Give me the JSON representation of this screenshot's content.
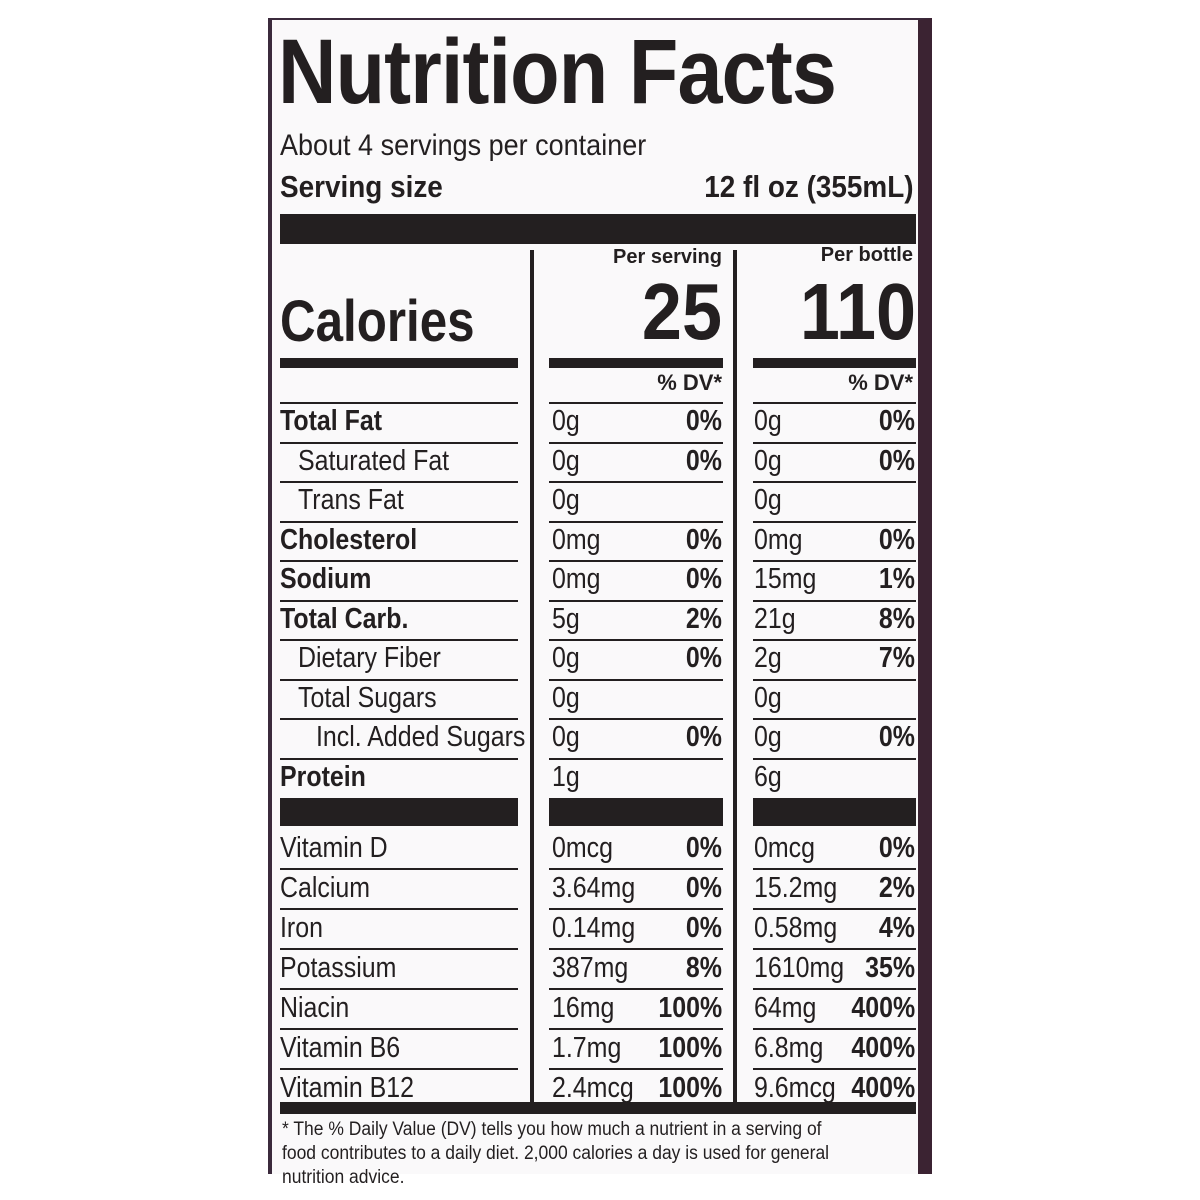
{
  "title": "Nutrition Facts",
  "servings_per_container": "About 4 servings per container",
  "serving_size_label": "Serving size",
  "serving_size_value": "12 fl oz (355mL)",
  "columns": [
    {
      "header": "Per serving",
      "calories": "25",
      "dv_header": "% DV*"
    },
    {
      "header": "Per bottle",
      "calories": "110",
      "dv_header": "% DV*"
    }
  ],
  "calories_label": "Calories",
  "nutrients": [
    {
      "label": "Total Fat",
      "bold": true,
      "indent": 0,
      "serving": "0g",
      "serving_dv": "0%",
      "bottle": "0g",
      "bottle_dv": "0%"
    },
    {
      "label": "Saturated Fat",
      "bold": false,
      "indent": 1,
      "serving": "0g",
      "serving_dv": "0%",
      "bottle": "0g",
      "bottle_dv": "0%"
    },
    {
      "label": "Trans Fat",
      "bold": false,
      "indent": 1,
      "serving": "0g",
      "serving_dv": "",
      "bottle": "0g",
      "bottle_dv": ""
    },
    {
      "label": "Cholesterol",
      "bold": true,
      "indent": 0,
      "serving": "0mg",
      "serving_dv": "0%",
      "bottle": "0mg",
      "bottle_dv": "0%"
    },
    {
      "label": "Sodium",
      "bold": true,
      "indent": 0,
      "serving": "0mg",
      "serving_dv": "0%",
      "bottle": "15mg",
      "bottle_dv": "1%"
    },
    {
      "label": "Total Carb.",
      "bold": true,
      "indent": 0,
      "serving": "5g",
      "serving_dv": "2%",
      "bottle": "21g",
      "bottle_dv": "8%"
    },
    {
      "label": "Dietary Fiber",
      "bold": false,
      "indent": 1,
      "serving": "0g",
      "serving_dv": "0%",
      "bottle": "2g",
      "bottle_dv": "7%"
    },
    {
      "label": "Total Sugars",
      "bold": false,
      "indent": 1,
      "serving": "0g",
      "serving_dv": "",
      "bottle": "0g",
      "bottle_dv": ""
    },
    {
      "label": "Incl. Added Sugars",
      "bold": false,
      "indent": 2,
      "serving": "0g",
      "serving_dv": "0%",
      "bottle": "0g",
      "bottle_dv": "0%"
    },
    {
      "label": "Protein",
      "bold": true,
      "indent": 0,
      "serving": "1g",
      "serving_dv": "",
      "bottle": "6g",
      "bottle_dv": ""
    }
  ],
  "vitamins": [
    {
      "label": "Vitamin D",
      "serving": "0mcg",
      "serving_dv": "0%",
      "bottle": "0mcg",
      "bottle_dv": "0%"
    },
    {
      "label": "Calcium",
      "serving": "3.64mg",
      "serving_dv": "0%",
      "bottle": "15.2mg",
      "bottle_dv": "2%"
    },
    {
      "label": "Iron",
      "serving": "0.14mg",
      "serving_dv": "0%",
      "bottle": "0.58mg",
      "bottle_dv": "4%"
    },
    {
      "label": "Potassium",
      "serving": "387mg",
      "serving_dv": "8%",
      "bottle": "1610mg",
      "bottle_dv": "35%"
    },
    {
      "label": "Niacin",
      "serving": "16mg",
      "serving_dv": "100%",
      "bottle": "64mg",
      "bottle_dv": "400%"
    },
    {
      "label": "Vitamin B6",
      "serving": "1.7mg",
      "serving_dv": "100%",
      "bottle": "6.8mg",
      "bottle_dv": "400%"
    },
    {
      "label": "Vitamin B12",
      "serving": "2.4mcg",
      "serving_dv": "100%",
      "bottle": "9.6mcg",
      "bottle_dv": "400%"
    }
  ],
  "footnote": "* The % Daily Value (DV) tells you how much a nutrient in a serving of food contributes to a daily diet. 2,000 calories a day is used for general nutrition advice."
}
